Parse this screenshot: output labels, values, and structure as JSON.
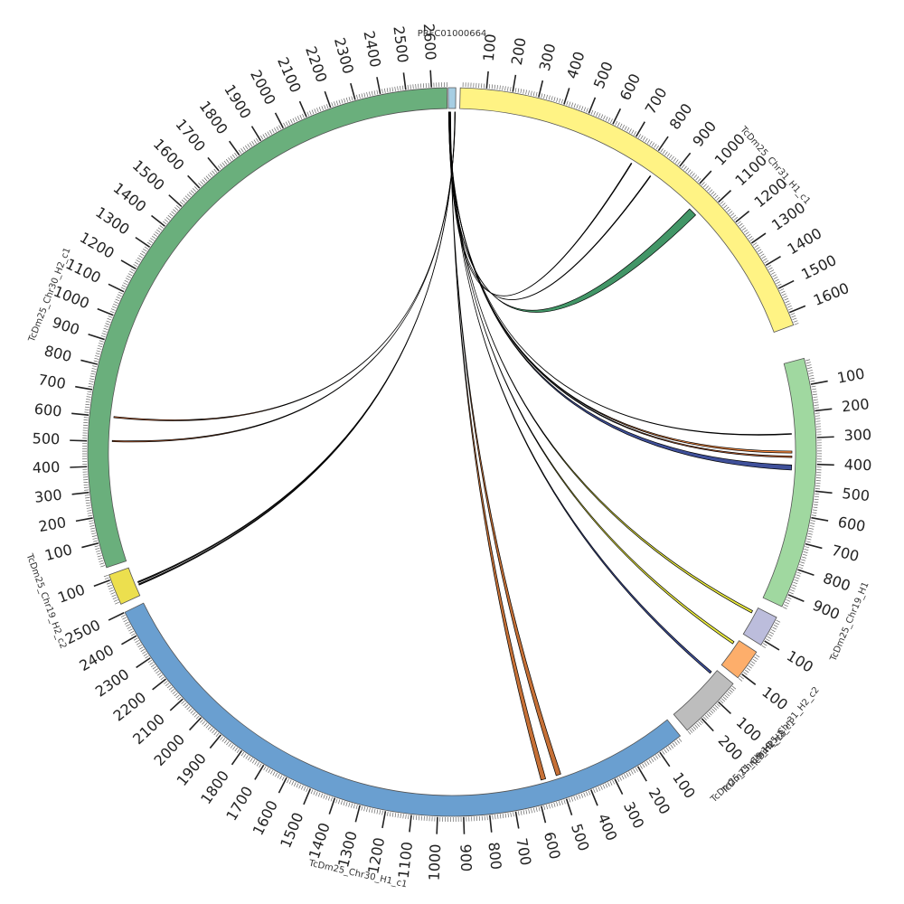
{
  "chart_data": {
    "type": "chord",
    "segments": [
      {
        "name": "PRFC01000664",
        "length": 18,
        "color": "#a6cee3",
        "start_deg": -0.6,
        "end_deg": 0.6,
        "label_offset_deg": 0,
        "tick_step": 0
      },
      {
        "name": "TcDm25_Chr31_H1_c1",
        "length": 1650,
        "color": "#fff384",
        "start_deg": 1.3,
        "end_deg": 69.6,
        "label_offset_deg": 13,
        "tick_step": 100
      },
      {
        "name": "TcDm25_Chr19_H1",
        "length": 950,
        "color": "#a0d8a0",
        "start_deg": 75.1,
        "end_deg": 115.1,
        "label_offset_deg": 18,
        "tick_step": 100
      },
      {
        "name": "TcDm25_Chr31_H2_c2",
        "length": 120,
        "color": "#bcbddc",
        "start_deg": 117.0,
        "end_deg": 122.0,
        "label_offset_deg": 10,
        "tick_step": 100
      },
      {
        "name": "TcDm25_Chr19_H2_c1",
        "length": 120,
        "color": "#fdae6b",
        "start_deg": 123.3,
        "end_deg": 128.3,
        "label_offset_deg": 9,
        "tick_step": 100
      },
      {
        "name": "TcDm25_Chr19_H2_c3",
        "length": 280,
        "color": "#bdbdbd",
        "start_deg": 129.5,
        "end_deg": 139.8,
        "label_offset_deg": 2,
        "tick_step": 100
      },
      {
        "name": "TcDm25_Chr30_H1_c1",
        "length": 2500,
        "color": "#6a9fd0",
        "start_deg": 141.2,
        "end_deg": 243.9,
        "label_offset_deg": 0,
        "tick_step": 100
      },
      {
        "name": "TcDm25_Chr19_H2_c2",
        "length": 120,
        "color": "#ecdf4e",
        "start_deg": 245.3,
        "end_deg": 250.3,
        "label_offset_deg": 2,
        "tick_step": 100
      },
      {
        "name": "TcDm25_Chr30_H2_c1",
        "length": 2660,
        "color": "#6aaf7c",
        "start_deg": 251.5,
        "end_deg": 359.2,
        "label_offset_deg": -14,
        "tick_step": 100
      }
    ],
    "links": [
      {
        "from": [
          0.4,
          0.7
        ],
        "to_segment": 1,
        "to": [
          1040,
          1075
        ],
        "color": "#2e8b57"
      },
      {
        "from": [
          0.8,
          0.9
        ],
        "to_segment": 1,
        "to": [
          830,
          833
        ],
        "color": "#000000"
      },
      {
        "from": [
          0.85,
          0.95
        ],
        "to_segment": 1,
        "to": [
          737,
          740
        ],
        "color": "#000000"
      },
      {
        "from": [
          1.0,
          1.2
        ],
        "to_segment": 2,
        "to": [
          350,
          358
        ],
        "color": "#ff7f2a"
      },
      {
        "from": [
          1.2,
          1.4
        ],
        "to_segment": 2,
        "to": [
          370,
          376
        ],
        "color": "#e06020"
      },
      {
        "from": [
          1.2,
          1.3
        ],
        "to_segment": 2,
        "to": [
          280,
          283
        ],
        "color": "#000000"
      },
      {
        "from": [
          1.4,
          2.4
        ],
        "to_segment": 2,
        "to": [
          406,
          426
        ],
        "color": "#2a3d8f"
      },
      {
        "from": [
          2.4,
          3.2
        ],
        "to_segment": 3,
        "to": [
          20,
          30
        ],
        "color": "#e8e82a"
      },
      {
        "from": [
          3.2,
          3.9
        ],
        "to_segment": 4,
        "to": [
          15,
          25
        ],
        "color": "#e8e82a"
      },
      {
        "from": [
          3.9,
          4.4
        ],
        "to_segment": 5,
        "to": [
          20,
          30
        ],
        "color": "#2a3d8f"
      },
      {
        "from": [
          4.4,
          5.0
        ],
        "to_segment": 6,
        "to": [
          490,
          510
        ],
        "color": "#c06020"
      },
      {
        "from": [
          5.0,
          5.6
        ],
        "to_segment": 6,
        "to": [
          555,
          575
        ],
        "color": "#c06020"
      },
      {
        "from": [
          16.0,
          16.3
        ],
        "to_segment": 7,
        "to": [
          40,
          45
        ],
        "color": "#000000"
      },
      {
        "from": [
          16.3,
          16.6
        ],
        "to_segment": 7,
        "to": [
          50,
          55
        ],
        "color": "#000000"
      },
      {
        "from": [
          16.6,
          17.0
        ],
        "to_segment": 8,
        "to": [
          500,
          505
        ],
        "color": "#e06020"
      },
      {
        "from": [
          17.0,
          17.4
        ],
        "to_segment": 8,
        "to": [
          600,
          605
        ],
        "color": "#e06020"
      }
    ]
  }
}
